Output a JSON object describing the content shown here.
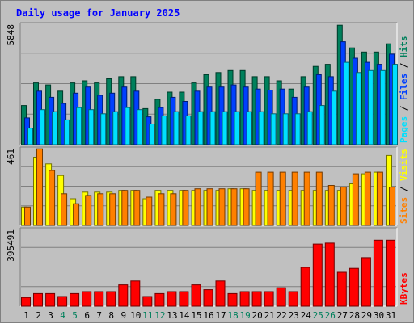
{
  "chart_data": {
    "type": "bar",
    "title": "Daily usage for January 2025",
    "days": [
      "1",
      "2",
      "3",
      "4",
      "5",
      "6",
      "7",
      "8",
      "9",
      "10",
      "11",
      "12",
      "13",
      "14",
      "15",
      "16",
      "17",
      "18",
      "19",
      "20",
      "21",
      "22",
      "23",
      "24",
      "25",
      "26",
      "27",
      "28",
      "29",
      "30",
      "31"
    ],
    "weekend_days": [
      "4",
      "5",
      "11",
      "12",
      "18",
      "19",
      "25",
      "26"
    ],
    "panels": [
      {
        "id": "hits_files_pages",
        "max_label": "5848",
        "ymax": 5848,
        "series": [
          {
            "name": "Hits",
            "color": "#00805c",
            "values": [
              1900,
              3000,
              2900,
              2600,
              3000,
              3100,
              3000,
              3200,
              3300,
              3300,
              1750,
              2200,
              2550,
              2550,
              3000,
              3400,
              3500,
              3600,
              3600,
              3300,
              3300,
              3100,
              2700,
              3300,
              3800,
              3900,
              5800,
              4700,
              4500,
              4500,
              4900
            ]
          },
          {
            "name": "Files",
            "color": "#0040ff",
            "values": [
              1300,
              2600,
              2300,
              2000,
              2500,
              2800,
              2400,
              2500,
              2800,
              2600,
              1350,
              1800,
              2300,
              2100,
              2600,
              2800,
              2800,
              2900,
              2800,
              2700,
              2650,
              2700,
              2300,
              2800,
              3400,
              3300,
              5000,
              4200,
              4000,
              3900,
              4400
            ]
          },
          {
            "name": "Pages",
            "color": "#00e0ff",
            "values": [
              800,
              1700,
              1600,
              1200,
              1800,
              1700,
              1500,
              1600,
              1800,
              1700,
              1000,
              1400,
              1600,
              1400,
              1600,
              1600,
              1600,
              1600,
              1600,
              1600,
              1500,
              1500,
              1500,
              1600,
              1900,
              2600,
              4000,
              3500,
              3600,
              3600,
              3900
            ]
          }
        ],
        "legend_labels": [
          "Pages",
          "Files",
          "Hits"
        ]
      },
      {
        "id": "visits_sites",
        "max_label": "461",
        "ymax": 461,
        "series": [
          {
            "name": "Visits",
            "color": "#ffff00",
            "values": [
              110,
              410,
              370,
              300,
              160,
              200,
              200,
              200,
              210,
              210,
              160,
              210,
              210,
              210,
              210,
              210,
              210,
              220,
              220,
              210,
              210,
              210,
              210,
              210,
              210,
              210,
              210,
              250,
              310,
              320,
              420
            ]
          },
          {
            "name": "Sites",
            "color": "#ff8000",
            "values": [
              110,
              460,
              330,
              190,
              130,
              180,
              190,
              190,
              210,
              210,
              170,
              190,
              190,
              210,
              220,
              220,
              220,
              220,
              220,
              320,
              320,
              320,
              320,
              320,
              320,
              240,
              230,
              310,
              320,
              320,
              230
            ]
          }
        ],
        "legend_labels": [
          "Sites",
          "Visits"
        ]
      },
      {
        "id": "kbytes",
        "max_label": "395491",
        "ymax": 395491,
        "series": [
          {
            "name": "KBytes",
            "color": "#ff0000",
            "values": [
              45000,
              65000,
              65000,
              50000,
              65000,
              75000,
              75000,
              75000,
              110000,
              130000,
              50000,
              65000,
              75000,
              75000,
              110000,
              85000,
              130000,
              65000,
              75000,
              75000,
              75000,
              95000,
              75000,
              200000,
              320000,
              325000,
              175000,
              195000,
              250000,
              340000,
              340000
            ]
          }
        ],
        "legend_labels": [
          "KBytes"
        ]
      }
    ]
  },
  "colors": {
    "title": "#0000ff",
    "weekday_label": "#000000",
    "weekend_label": "#00805c",
    "panel_bg": "#c0c0c0",
    "grid": "#808080"
  }
}
